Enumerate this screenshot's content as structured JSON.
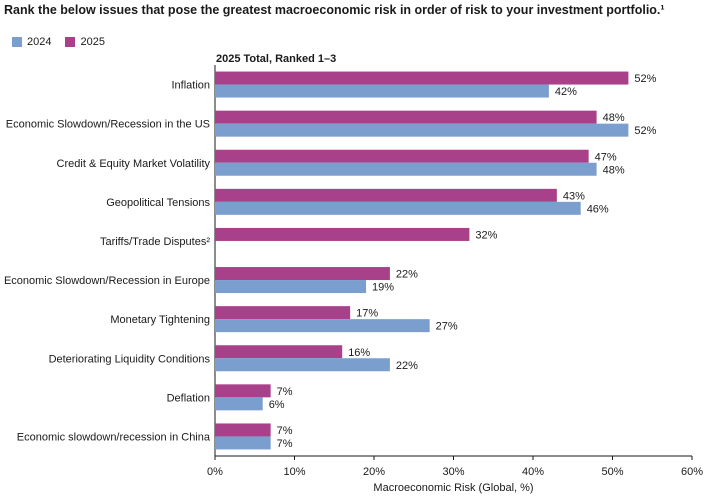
{
  "title": "Rank the below issues that pose the greatest macroeconomic risk in order of risk to your investment portfolio.¹",
  "subtitle": "2025 Total, Ranked 1–3",
  "colors": {
    "2024": "#7a9fcf",
    "2025": "#a8408a"
  },
  "chart_data": {
    "type": "bar",
    "orientation": "horizontal",
    "categories": [
      "Inflation",
      "Economic Slowdown/Recession in the US",
      "Credit & Equity Market Volatility",
      "Geopolitical Tensions",
      "Tariffs/Trade Disputes²",
      "Economic Slowdown/Recession in Europe",
      "Monetary Tightening",
      "Deteriorating Liquidity Conditions",
      "Deflation",
      "Economic slowdown/recession in China"
    ],
    "series": [
      {
        "name": "2025",
        "values": [
          52,
          48,
          47,
          43,
          32,
          22,
          17,
          16,
          7,
          7
        ],
        "labels": [
          "52%",
          "48%",
          "47%",
          "43%",
          "32%",
          "22%",
          "17%",
          "16%",
          "7%",
          "7%"
        ]
      },
      {
        "name": "2024",
        "values": [
          42,
          52,
          48,
          46,
          null,
          19,
          27,
          22,
          6,
          7
        ],
        "labels": [
          "42%",
          "52%",
          "48%",
          "46%",
          "",
          "19%",
          "27%",
          "22%",
          "6%",
          "7%"
        ]
      }
    ],
    "xlabel": "Macroeconomic Risk (Global, %)",
    "xlim": [
      0,
      60
    ],
    "xticks": [
      "0%",
      "10%",
      "20%",
      "30%",
      "40%",
      "50%",
      "60%"
    ],
    "legend_position": "top-left",
    "grid": false
  }
}
